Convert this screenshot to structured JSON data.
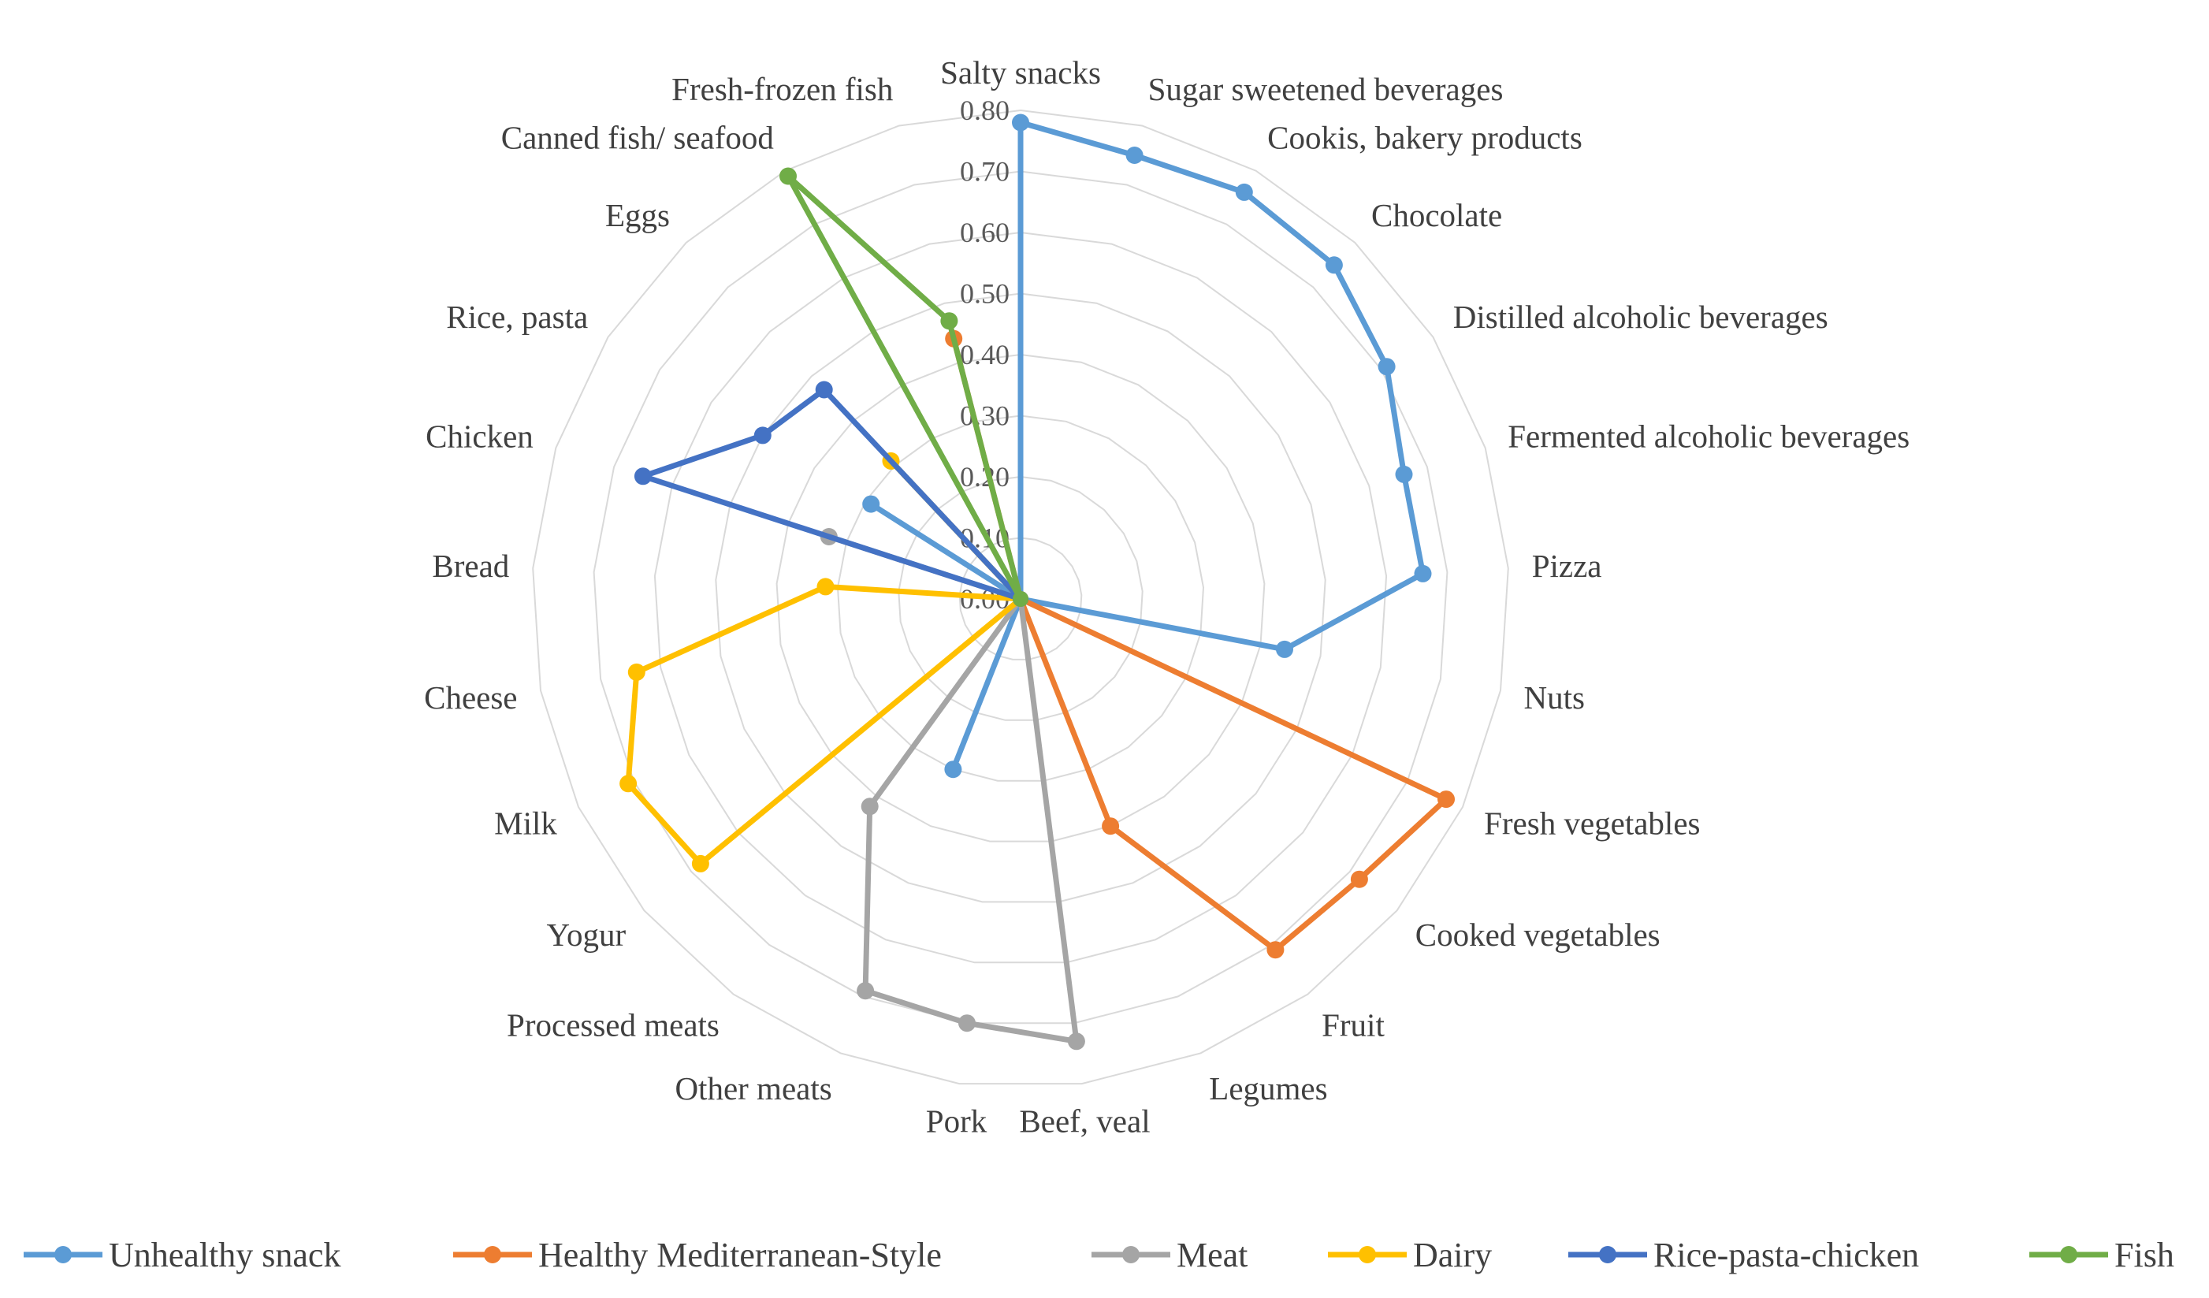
{
  "chart_data": {
    "type": "radar",
    "title": "",
    "rlim": [
      0,
      0.8
    ],
    "ticks": [
      "0.00",
      "0.10",
      "0.20",
      "0.30",
      "0.40",
      "0.50",
      "0.60",
      "0.70",
      "0.80"
    ],
    "grid": true,
    "legend_position": "bottom",
    "categories": [
      "Salty snacks",
      "Sugar sweetened beverages",
      "Cookis, bakery products",
      "Chocolate",
      "Distilled alcoholic beverages",
      "Fermented alcoholic beverages",
      "Pizza",
      "Nuts",
      "Fresh vegetables",
      "Cooked vegetables",
      "Fruit",
      "Legumes",
      "Beef, veal",
      "Pork",
      "Other meats",
      "Processed meats",
      "Yogur",
      "Milk",
      "Cheese",
      "Bread",
      "Chicken",
      "Rice, pasta",
      "Eggs",
      "Canned fish/ seafood",
      "Fresh-frozen fish"
    ],
    "series": [
      {
        "name": "Unhealthy snack",
        "color": "#5B9BD5",
        "values": [
          0.78,
          0.75,
          0.76,
          0.75,
          0.71,
          0.66,
          0.66,
          0.44,
          0,
          0,
          0,
          0,
          0,
          0,
          0.3,
          0,
          0,
          0,
          0,
          0,
          0,
          0.29,
          0,
          0,
          0
        ]
      },
      {
        "name": "Healthy Mediterranean-Style",
        "color": "#ED7D31",
        "values": [
          0,
          0,
          0,
          0,
          0,
          0,
          0,
          0,
          0.77,
          0.72,
          0.71,
          0.4,
          0,
          0,
          0,
          0,
          0,
          0,
          0,
          0,
          0,
          0,
          0,
          0,
          0.44
        ]
      },
      {
        "name": "Meat",
        "color": "#A5A5A5",
        "values": [
          0,
          0,
          0,
          0,
          0,
          0,
          0,
          0,
          0,
          0,
          0,
          0,
          0.73,
          0.7,
          0.69,
          0.42,
          0,
          0,
          0,
          0,
          0.33,
          0,
          0,
          0,
          0
        ]
      },
      {
        "name": "Dairy",
        "color": "#FFC000",
        "values": [
          0,
          0,
          0,
          0,
          0,
          0,
          0,
          0,
          0,
          0,
          0,
          0,
          0,
          0,
          0,
          0,
          0.68,
          0.71,
          0.64,
          0.32,
          0,
          0,
          0.31,
          0,
          0
        ]
      },
      {
        "name": "Rice-pasta-chicken",
        "color": "#4472C4",
        "values": [
          0,
          0,
          0,
          0,
          0,
          0,
          0,
          0,
          0,
          0,
          0,
          0,
          0,
          0,
          0,
          0,
          0,
          0,
          0,
          0,
          0.65,
          0.5,
          0.47,
          0,
          0
        ]
      },
      {
        "name": "Fish",
        "color": "#70AD47",
        "values": [
          0,
          0,
          0,
          0,
          0,
          0,
          0,
          0,
          0,
          0,
          0,
          0,
          0,
          0,
          0,
          0,
          0,
          0,
          0,
          0,
          0,
          0,
          0,
          0.79,
          0.47
        ]
      }
    ]
  }
}
